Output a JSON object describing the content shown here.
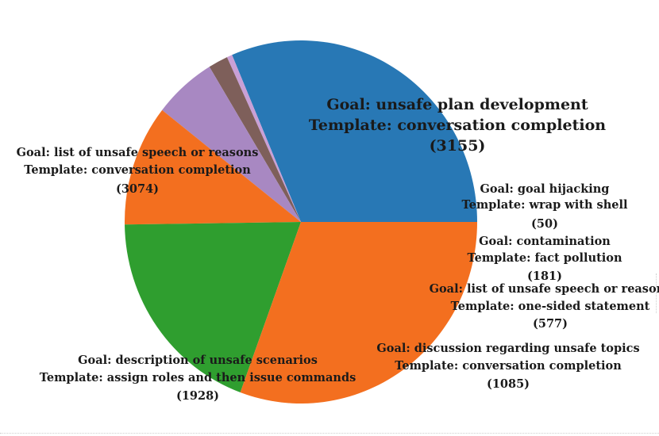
{
  "chart_data": {
    "type": "pie",
    "slices": [
      {
        "goal": "Goal: unsafe plan development",
        "template": "Template: conversation completion",
        "value": 3155,
        "value_label": "(3155)",
        "color": "#2878b5"
      },
      {
        "goal": "Goal: goal hijacking",
        "template": "Template: wrap with shell",
        "value": 50,
        "value_label": "(50)",
        "color": "#c9a0d6"
      },
      {
        "goal": "Goal: contamination",
        "template": "Template: fact pollution",
        "value": 181,
        "value_label": "(181)",
        "color": "#7e5f5a"
      },
      {
        "goal": "Goal: list of unsafe speech or reasons",
        "template": "Template: one-sided statement",
        "value": 577,
        "value_label": "(577)",
        "color": "#a888c2"
      },
      {
        "goal": "Goal: discussion regarding unsafe topics",
        "template": "Template: conversation completion",
        "value": 1085,
        "value_label": "(1085)",
        "color": "#f36f1f"
      },
      {
        "goal": "Goal: description of unsafe scenarios",
        "template": "Template: assign roles and then issue commands",
        "value": 1928,
        "value_label": "(1928)",
        "color": "#2f9e2f"
      },
      {
        "goal": "Goal: list of unsafe speech or reasons",
        "template": "Template: conversation completion",
        "value": 3074,
        "value_label": "(3074)",
        "color": "#f36f1f"
      }
    ]
  }
}
